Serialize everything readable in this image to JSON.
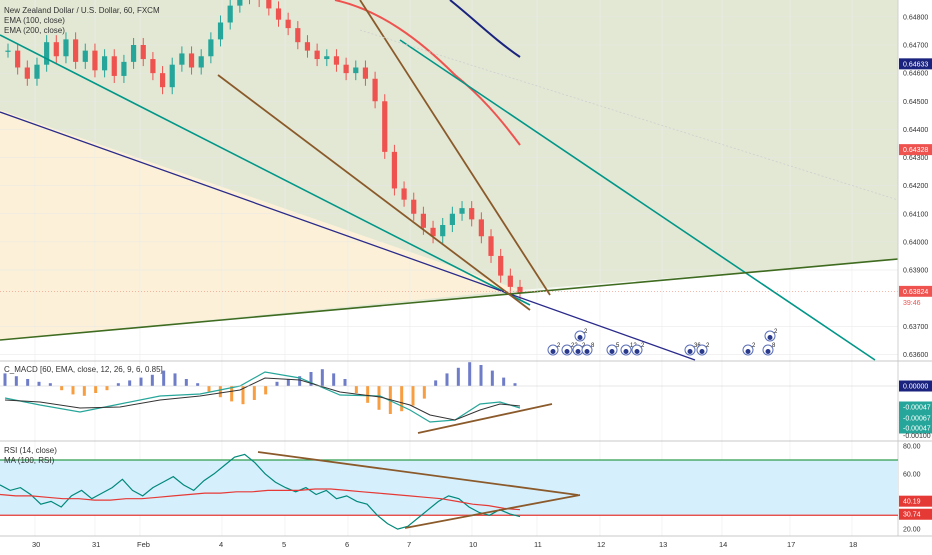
{
  "chart_title": "New Zealand Dollar / U.S. Dollar, 60, FXCM",
  "price_indicators": [
    "EMA (100, close)",
    "EMA (200, close)"
  ],
  "macd_title": "C_MACD [60, EMA, close, 12, 26, 9, 6, 0.85]",
  "rsi_title": "RSI (14, close)",
  "rsi_ma_title": "MA (100, RSI)",
  "x_ticks": [
    "30",
    "31",
    "Feb",
    "4",
    "5",
    "6",
    "7",
    "10",
    "11",
    "12",
    "13",
    "14",
    "17",
    "18"
  ],
  "colors": {
    "up": "#26a69a",
    "down": "#ef5350",
    "ema100": "#ef5350",
    "ema200": "#1a237e",
    "teal": "#009688",
    "brown": "#8b5a2b",
    "olive": "#3e6b1f",
    "navy": "#2a2a8c",
    "zone_green": "#dfe6cf",
    "zone_cream": "#fdf1d8",
    "rsi_band": "#d6effc"
  },
  "calendar_badges": [
    "2",
    "22",
    "2",
    "8",
    "5",
    "12",
    "2",
    "36",
    "2",
    "2",
    "8",
    "2",
    "2"
  ],
  "chart_data": [
    {
      "type": "candlestick",
      "panel": "price",
      "symbol": "NZDUSD",
      "timeframe": "60",
      "y_ticks": [
        "0.64800",
        "0.64700",
        "0.64600",
        "0.64500",
        "0.64400",
        "0.64300",
        "0.64200",
        "0.64100",
        "0.64000",
        "0.63900",
        "0.63700",
        "0.63600"
      ],
      "ylim": [
        0.6358,
        0.6486
      ],
      "last_price": "0.63824",
      "countdown": "39:46",
      "ema100_label": "0.64328",
      "ema200_label": "0.64633",
      "ema100_points": [
        [
          0.6485,
          0
        ],
        [
          0.6478,
          0
        ],
        [
          0.6465,
          0
        ],
        [
          0.6451,
          0
        ],
        [
          0.6434,
          0
        ]
      ],
      "ema200_points": [
        [
          0.6485,
          0
        ],
        [
          0.6475,
          0
        ],
        [
          0.6463,
          0
        ]
      ],
      "close_path": [
        0.6468,
        0.6462,
        0.6458,
        0.6463,
        0.6471,
        0.6466,
        0.6472,
        0.6464,
        0.6468,
        0.6461,
        0.6466,
        0.6459,
        0.6464,
        0.647,
        0.6465,
        0.646,
        0.6455,
        0.6463,
        0.6467,
        0.6462,
        0.6466,
        0.6472,
        0.6478,
        0.6484,
        0.6487,
        0.649,
        0.6486,
        0.6483,
        0.6479,
        0.6476,
        0.6471,
        0.6468,
        0.6465,
        0.6466,
        0.6463,
        0.646,
        0.6462,
        0.6458,
        0.645,
        0.6432,
        0.6419,
        0.6415,
        0.641,
        0.6405,
        0.6402,
        0.6406,
        0.641,
        0.6412,
        0.6408,
        0.6402,
        0.6395,
        0.6388,
        0.6384,
        0.6382
      ]
    },
    {
      "type": "bar",
      "panel": "macd",
      "y_ticks": [
        "0.00000",
        "-0.00047",
        "-0.00100"
      ],
      "value_labels": [
        "0.00000",
        "-0.00047",
        "-0.00067",
        "-0.00047"
      ],
      "histogram": [
        0.00018,
        0.00014,
        0.0001,
        6e-05,
        4e-05,
        -6e-05,
        -0.00012,
        -0.00014,
        -0.0001,
        -6e-05,
        4e-05,
        8e-05,
        0.00012,
        0.00016,
        0.00022,
        0.00018,
        0.0001,
        4e-05,
        -8e-05,
        -0.00016,
        -0.00022,
        -0.00026,
        -0.0002,
        -0.00012,
        6e-05,
        0.0001,
        0.00014,
        0.0002,
        0.00024,
        0.00018,
        0.0001,
        -0.0001,
        -0.00024,
        -0.00034,
        -0.0004,
        -0.00036,
        -0.00028,
        -0.00018,
        8e-05,
        0.00018,
        0.00026,
        0.00034,
        0.0003,
        0.00022,
        0.00012,
        4e-05
      ]
    },
    {
      "type": "line",
      "panel": "rsi",
      "ylim": [
        15,
        83
      ],
      "y_ticks": [
        "80.00",
        "60.00",
        "40.00",
        "20.00"
      ],
      "levels": [
        70,
        30
      ],
      "rsi_value_label": "40.19",
      "rsi_value_label_2": "30.74",
      "rsi": [
        52,
        48,
        50,
        45,
        38,
        40,
        36,
        44,
        48,
        42,
        46,
        50,
        56,
        48,
        44,
        50,
        54,
        58,
        52,
        48,
        55,
        60,
        66,
        72,
        74,
        68,
        60,
        54,
        50,
        47,
        50,
        45,
        48,
        42,
        44,
        40,
        38,
        30,
        24,
        20,
        22,
        28,
        34,
        40,
        44,
        42,
        36,
        32,
        30,
        34,
        31,
        29
      ],
      "rsi_ma": [
        45,
        44,
        44,
        43,
        42,
        42,
        41,
        41,
        42,
        42,
        43,
        44,
        45,
        46,
        46,
        47,
        47,
        48,
        48,
        48,
        49,
        49,
        48,
        47,
        46,
        45,
        44,
        43,
        42,
        40,
        38,
        37,
        35,
        34
      ]
    }
  ]
}
